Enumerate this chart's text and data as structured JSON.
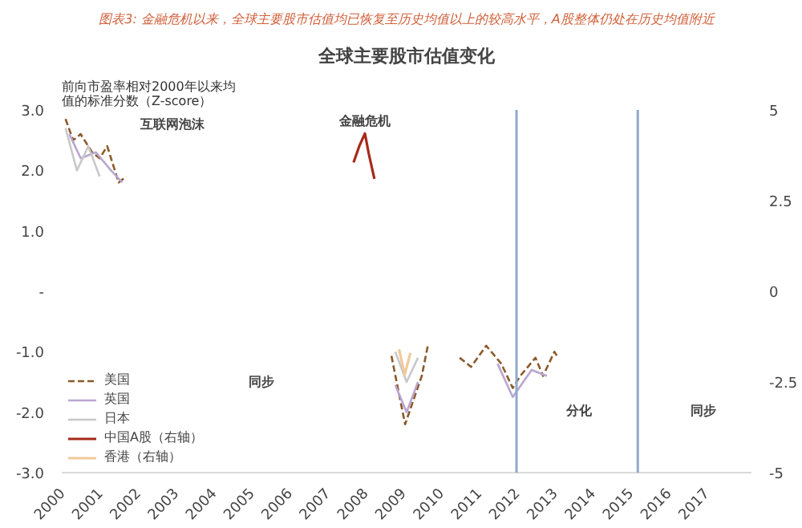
{
  "chart_data": {
    "type": "line",
    "title": "图表3: 金融危机以来，全球主要股市估值均已恢复至历史均值以上的较高水平，A股整体仍处在历史均值附近",
    "subtitle": "全球主要股市估值变化",
    "ylabel": "前向市盈率相对2000年以来均值的标准分数（Z-score）",
    "xlim": [
      2000,
      2018.2
    ],
    "xticks": [
      2000,
      2001,
      2002,
      2003,
      2004,
      2005,
      2006,
      2007,
      2008,
      2009,
      2010,
      2011,
      2012,
      2013,
      2014,
      2015,
      2016,
      2017
    ],
    "ylim": [
      -3,
      3
    ],
    "yticks": [
      {
        "value": 3,
        "label": "3.0"
      },
      {
        "value": 2,
        "label": "2.0"
      },
      {
        "value": 1,
        "label": "1.0"
      },
      {
        "value": 0,
        "label": "-"
      },
      {
        "value": -1,
        "label": "-1.0"
      },
      {
        "value": -2,
        "label": "-2.0"
      },
      {
        "value": -3,
        "label": "-3.0"
      }
    ],
    "y2lim": [
      -5,
      5
    ],
    "y2ticks": [
      5,
      2.5,
      0,
      -2.5,
      -5
    ],
    "series": [
      {
        "name": "美国",
        "color": "#8b5a2b",
        "line_style": "dashed",
        "x": [
          2000.1,
          2000.3,
          2000.5,
          2000.8,
          2001.0,
          2001.2,
          2001.5,
          2001.7,
          2002.0,
          2008.4,
          2008.7,
          2009.06,
          2009.5,
          2009.66,
          2010.0,
          2010.5,
          2010.8,
          2011.2,
          2011.6,
          2011.9,
          2012.1,
          2012.5,
          2012.7,
          2013.0,
          2013.1
        ],
        "values": [
          2.85,
          2.5,
          2.6,
          2.3,
          2.2,
          2.4,
          1.8,
          1.9,
          null,
          null,
          -1.07,
          -2.2,
          -1.4,
          -0.9,
          null,
          -1.1,
          -1.25,
          -0.9,
          -1.2,
          -1.6,
          -1.4,
          -1.1,
          -1.4,
          -1.0,
          -1.1
        ]
      },
      {
        "name": "英国",
        "color": "#b9a6d0",
        "x": [
          2000.2,
          2000.5,
          2000.9,
          2001.3,
          2001.6,
          2002.0,
          2008.5,
          2008.8,
          2009.1,
          2009.4,
          2009.7,
          2011.0,
          2011.5,
          2011.9,
          2012.4,
          2012.8
        ],
        "values": [
          2.6,
          2.2,
          2.3,
          2.0,
          1.8,
          null,
          null,
          -1.55,
          -2.0,
          -1.5,
          null,
          null,
          -1.2,
          -1.75,
          -1.3,
          -1.4
        ]
      },
      {
        "name": "日本",
        "color": "#c8c8c8",
        "x": [
          2000.1,
          2000.4,
          2000.7,
          2001.0,
          2001.3,
          2008.6,
          2008.8,
          2009.1,
          2009.4
        ],
        "values": [
          2.7,
          2.0,
          2.4,
          1.9,
          null,
          null,
          -1.0,
          -1.5,
          -1.1
        ]
      },
      {
        "name": "中国A股（右轴）",
        "color": "#a52a1a",
        "axis": "y2",
        "x": [
          2007.7,
          2007.85,
          2008.0,
          2008.1,
          2008.25
        ],
        "values": [
          3.55,
          4.0,
          4.35,
          3.8,
          3.1
        ]
      },
      {
        "name": "香港（右轴）",
        "color": "#f2c99a",
        "axis": "y2",
        "x": [
          2008.9,
          2009.05,
          2009.2
        ],
        "values": [
          -1.6,
          -2.3,
          -1.7
        ]
      }
    ],
    "ref_lines": [
      {
        "axis": "x",
        "value": 2012.0,
        "color": "#8eaacb"
      },
      {
        "axis": "x",
        "value": 2015.2,
        "color": "#8eaacb"
      }
    ],
    "annotations": [
      "互联网泡沫",
      "金融危机",
      "同步",
      "分化",
      "同步"
    ],
    "legend": "bottom left",
    "grid": false
  }
}
